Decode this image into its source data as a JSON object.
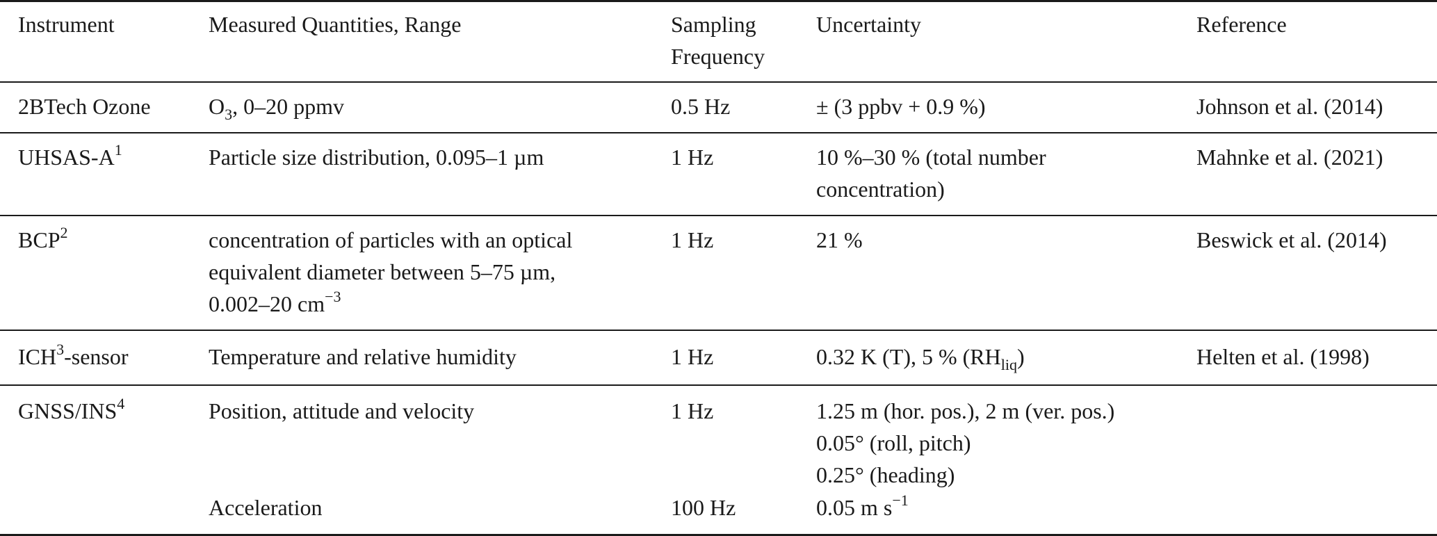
{
  "table": {
    "headers": {
      "instrument": "Instrument",
      "quantities": "Measured Quantities, Range",
      "sampling_line1": "Sampling",
      "sampling_line2": "Frequency",
      "uncertainty": "Uncertainty",
      "reference": "Reference"
    },
    "rows": [
      {
        "instrument": "2BTech Ozone",
        "quantities_pre": "O",
        "quantities_sub": "3",
        "quantities_post": ", 0–20 ppmv",
        "sampling": "0.5 Hz",
        "uncertainty": "± (3 ppbv + 0.9 %)",
        "reference": "Johnson et al. (2014)"
      },
      {
        "instrument": "UHSAS-A",
        "instrument_sup": "1",
        "quantities": "Particle size distribution, 0.095–1 µm",
        "sampling": "1 Hz",
        "uncertainty_line1": "10 %–30 % (total number",
        "uncertainty_line2": "concentration)",
        "reference": "Mahnke et al. (2021)"
      },
      {
        "instrument": "BCP",
        "instrument_sup": "2",
        "quantities_line1": "concentration of particles with an optical",
        "quantities_line2": "equivalent diameter between 5–75 µm,",
        "quantities_line3": "0.002–20 cm",
        "quantities_line3_sup": "−3",
        "sampling": "1 Hz",
        "uncertainty": "21 %",
        "reference": "Beswick et al. (2014)"
      },
      {
        "instrument_pre": "ICH",
        "instrument_sup": "3",
        "instrument_post": "-sensor",
        "quantities": "Temperature and relative humidity",
        "sampling": "1 Hz",
        "uncertainty_pre": "0.32 K (T), 5 % (RH",
        "uncertainty_sub": "liq",
        "uncertainty_post": ")",
        "reference": "Helten et al. (1998)"
      },
      {
        "instrument": "GNSS/INS",
        "instrument_sup": "4",
        "quantities": "Position, attitude and velocity",
        "sampling": "1 Hz",
        "uncertainty_line1": "1.25 m (hor. pos.), 2 m (ver. pos.)",
        "uncertainty_line2": "0.05° (roll, pitch)",
        "uncertainty_line3": "0.25° (heading)",
        "reference": ""
      },
      {
        "instrument": "",
        "quantities": "Acceleration",
        "sampling": "100 Hz",
        "uncertainty_pre": "0.05 m s",
        "uncertainty_sup": "−1",
        "reference": ""
      }
    ]
  }
}
